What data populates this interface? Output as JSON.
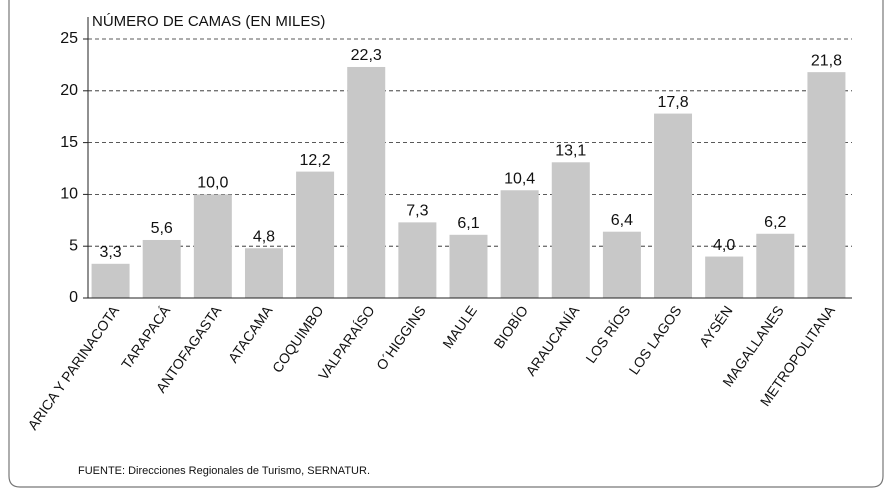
{
  "chart_data": {
    "type": "bar",
    "y_label": "NÚMERO DE CAMAS (EN MILES)",
    "source": "FUENTE: Direcciones Regionales de Turismo, SERNATUR.",
    "categories": [
      "ARICA Y PARINACOTA",
      "TARAPACÁ",
      "ANTOFAGASTA",
      "ATACAMA",
      "COQUIMBO",
      "VALPARAÍSO",
      "O´HIGGINS",
      "MAULE",
      "BIOBÍO",
      "ARAUCANÍA",
      "LOS RÍOS",
      "LOS LAGOS",
      "AYSÉN",
      "MAGALLANES",
      "METROPOLITANA"
    ],
    "values": [
      3.3,
      5.6,
      10.0,
      4.8,
      12.2,
      22.3,
      7.3,
      6.1,
      10.4,
      13.1,
      6.4,
      17.8,
      4.0,
      6.2,
      21.8
    ],
    "value_labels": [
      "3,3",
      "5,6",
      "10,0",
      "4,8",
      "12,2",
      "22,3",
      "7,3",
      "6,1",
      "10,4",
      "13,1",
      "6,4",
      "17,8",
      "4,0",
      "6,2",
      "21,8"
    ],
    "color": "#c8c8c8",
    "ylim": [
      0,
      25
    ],
    "yticks": [
      0,
      5,
      10,
      15,
      20,
      25
    ],
    "grid": true
  }
}
